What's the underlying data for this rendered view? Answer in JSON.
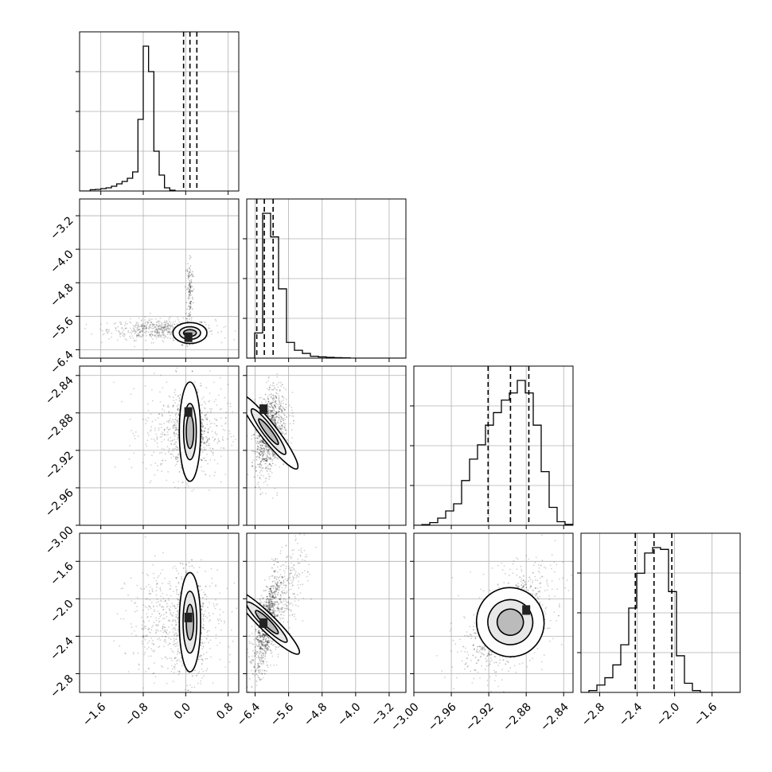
{
  "chart_data": {
    "type": "corner",
    "title": "",
    "parameters": [
      {
        "range": [
          -2.0,
          1.0
        ],
        "ticks": [
          -1.6,
          -0.8,
          0.0,
          0.8
        ],
        "tick_labels": [
          "−1.6",
          "−0.8",
          "0.0",
          "0.8"
        ],
        "quantiles": [
          -0.04,
          0.08,
          0.21
        ],
        "hist_step": 0.1,
        "hist_values": [
          0,
          0,
          0.008,
          0.01,
          0.015,
          0.02,
          0.03,
          0.045,
          0.06,
          0.08,
          0.12,
          0.45,
          0.91,
          0.75,
          0.25,
          0.1,
          0.02,
          0.005,
          0,
          0
        ]
      },
      {
        "range": [
          -6.6,
          -2.8
        ],
        "ticks": [
          -6.4,
          -5.6,
          -4.8,
          -4.0,
          -3.2
        ],
        "tick_labels": [
          "−6.4",
          "−5.6",
          "−4.8",
          "−4.0",
          "−3.2"
        ],
        "quantiles": [
          -6.36,
          -6.18,
          -5.97
        ],
        "hist_step": 0.19,
        "hist_values": [
          0,
          0.16,
          0.92,
          0.77,
          0.44,
          0.1,
          0.05,
          0.03,
          0.012,
          0.008,
          0.005,
          0.003,
          0.002,
          0,
          0,
          0,
          0,
          0,
          0,
          0
        ]
      },
      {
        "range": [
          -3.0,
          -2.83
        ],
        "ticks": [
          -3.0,
          -2.96,
          -2.92,
          -2.88,
          -2.84
        ],
        "tick_labels": [
          "−3.00",
          "−2.96",
          "−2.92",
          "−2.88",
          "−2.84"
        ],
        "quantiles": [
          -2.9207,
          -2.8968,
          -2.8772
        ],
        "hist_step": 0.0085,
        "hist_values": [
          0,
          0.004,
          0.015,
          0.04,
          0.08,
          0.12,
          0.25,
          0.37,
          0.45,
          0.56,
          0.63,
          0.7,
          0.74,
          0.81,
          0.74,
          0.56,
          0.3,
          0.1,
          0.02,
          0.005
        ]
      },
      {
        "range": [
          -3.0,
          -1.3
        ],
        "ticks": [
          -2.8,
          -2.4,
          -2.0,
          -1.6
        ],
        "tick_labels": [
          "−2.8",
          "−2.4",
          "−2.0",
          "−1.6"
        ],
        "quantiles": [
          -2.42,
          -2.22,
          -2.03
        ],
        "hist_step": 0.085,
        "hist_values": [
          0,
          0.01,
          0.04,
          0.08,
          0.15,
          0.26,
          0.46,
          0.65,
          0.76,
          0.79,
          0.78,
          0.55,
          0.2,
          0.05,
          0.01,
          0,
          0,
          0,
          0,
          0
        ]
      }
    ],
    "pairs": [
      {
        "row": 1,
        "col": 0,
        "center": [
          0.08,
          -6.0
        ],
        "sigma": [
          0.11,
          0.1
        ],
        "rho": 0.0,
        "bg_center": [
          -0.45,
          -5.92
        ],
        "bg_sigma": [
          0.5,
          0.12
        ],
        "tail_center": [
          0.08,
          -5.0
        ],
        "tail_sigma": [
          0.03,
          0.45
        ],
        "peak": [
          0.05,
          -6.1
        ],
        "levels": [
          [
            0.12,
            0.08
          ],
          [
            0.2,
            0.15
          ],
          [
            0.32,
            0.25
          ]
        ]
      },
      {
        "row": 2,
        "col": 0,
        "center": [
          0.08,
          -2.9
        ],
        "sigma": [
          0.13,
          0.018
        ],
        "rho": 0.0,
        "bg_center": [
          0.0,
          -2.9
        ],
        "bg_sigma": [
          0.4,
          0.025
        ],
        "tail_center": null,
        "tail_sigma": null,
        "peak": [
          0.05,
          -2.879
        ],
        "levels": [
          [
            0.07,
            0.018
          ],
          [
            0.12,
            0.03
          ],
          [
            0.2,
            0.053
          ]
        ]
      },
      {
        "row": 2,
        "col": 1,
        "center": [
          -6.08,
          -2.9
        ],
        "sigma": [
          0.14,
          0.018
        ],
        "rho": 0.35,
        "bg_center": [
          -6.0,
          -2.9
        ],
        "bg_sigma": [
          0.2,
          0.025
        ],
        "tail_center": null,
        "tail_sigma": null,
        "peak": [
          -6.2,
          -2.876
        ],
        "levels": [
          [
            0.07,
            0.017
          ],
          [
            0.13,
            0.03
          ],
          [
            0.2,
            0.05
          ]
        ]
      },
      {
        "row": 3,
        "col": 0,
        "center": [
          0.08,
          -2.25
        ],
        "sigma": [
          0.12,
          0.22
        ],
        "rho": 0.0,
        "bg_center": [
          -0.2,
          -2.25
        ],
        "bg_sigma": [
          0.45,
          0.3
        ],
        "tail_center": null,
        "tail_sigma": null,
        "peak": [
          0.05,
          -2.2
        ],
        "levels": [
          [
            0.07,
            0.19
          ],
          [
            0.13,
            0.33
          ],
          [
            0.2,
            0.53
          ]
        ]
      },
      {
        "row": 3,
        "col": 1,
        "center": [
          -6.12,
          -2.25
        ],
        "sigma": [
          0.14,
          0.25
        ],
        "rho": 0.75,
        "bg_center": [
          -5.9,
          -2.15
        ],
        "bg_sigma": [
          0.35,
          0.35
        ],
        "tail_center": null,
        "tail_sigma": null,
        "peak": [
          -6.2,
          -2.26
        ],
        "levels": [
          [
            0.08,
            0.17
          ],
          [
            0.13,
            0.3
          ],
          [
            0.2,
            0.48
          ]
        ]
      },
      {
        "row": 3,
        "col": 2,
        "center": [
          -2.897,
          -2.25
        ],
        "sigma": [
          0.017,
          0.2
        ],
        "rho": 0.5,
        "bg_center": [
          -2.9,
          -2.25
        ],
        "bg_sigma": [
          0.025,
          0.3
        ],
        "tail_center": null,
        "tail_sigma": null,
        "peak": [
          -2.88,
          -2.12
        ],
        "levels": [
          [
            0.014,
            0.14
          ],
          [
            0.024,
            0.24
          ],
          [
            0.036,
            0.37
          ]
        ]
      }
    ],
    "colors": {
      "line": "#000000",
      "grid": "#b0b0b0",
      "points": "#000000"
    }
  }
}
